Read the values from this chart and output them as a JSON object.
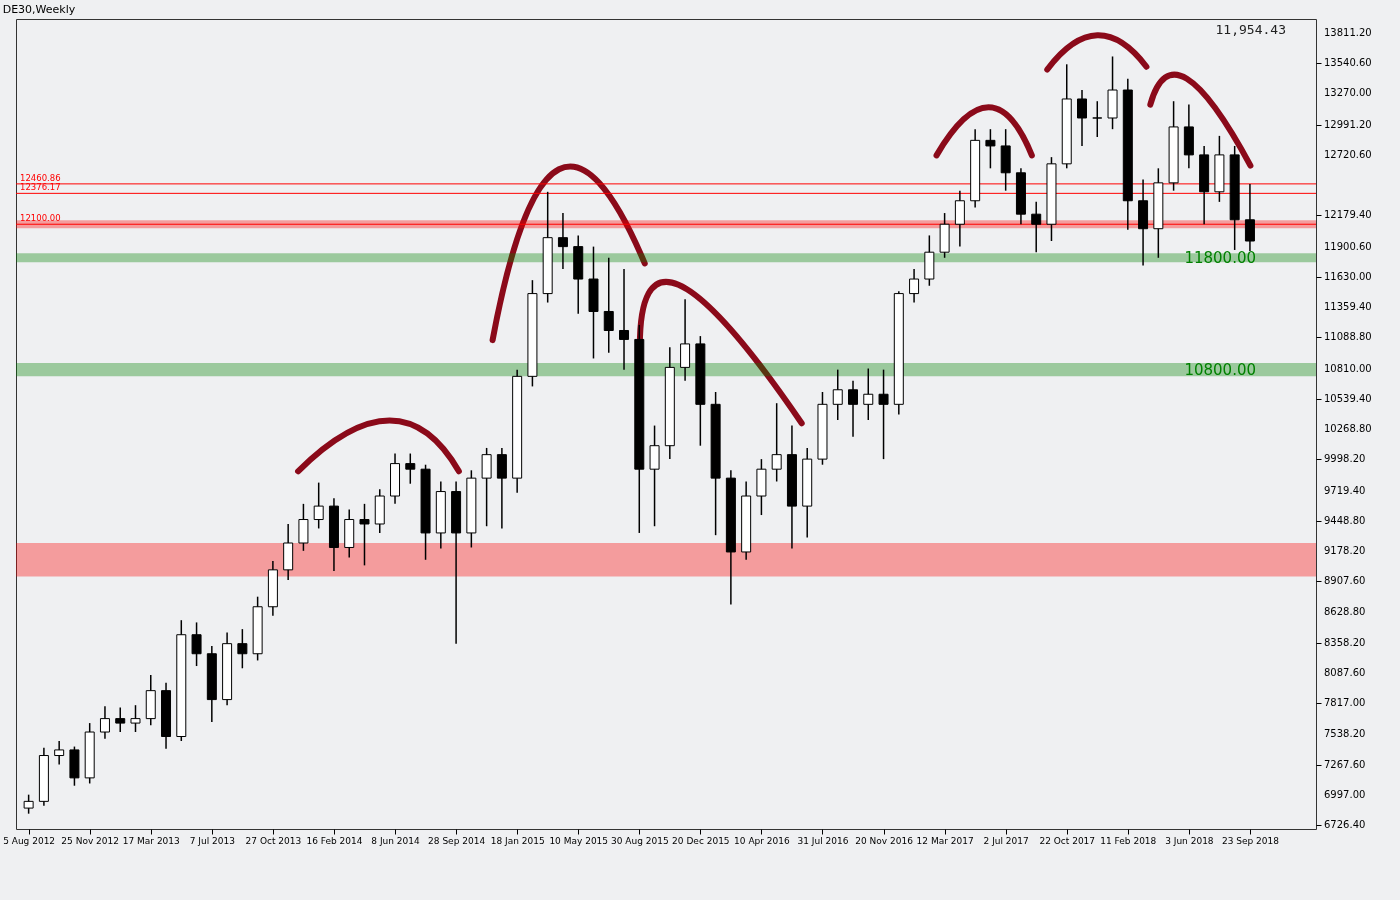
{
  "chart_data": {
    "type": "candlestick",
    "title": "DE30,Weekly",
    "annotations": [
      "11,954.43"
    ],
    "x": [
      "2012-08-05",
      "2012-09-02",
      "2012-09-30",
      "2012-10-28",
      "2012-11-25",
      "2012-12-23",
      "2013-01-20",
      "2013-02-17",
      "2013-03-17",
      "2013-04-14",
      "2013-05-12",
      "2013-06-09",
      "2013-07-07",
      "2013-08-04",
      "2013-09-01",
      "2013-09-29",
      "2013-10-27",
      "2013-11-24",
      "2013-12-22",
      "2014-01-19",
      "2014-02-16",
      "2014-03-16",
      "2014-04-13",
      "2014-05-11",
      "2014-06-08",
      "2014-07-06",
      "2014-08-03",
      "2014-08-31",
      "2014-09-28",
      "2014-10-26",
      "2014-11-23",
      "2014-12-21",
      "2015-01-18",
      "2015-02-15",
      "2015-03-15",
      "2015-04-12",
      "2015-05-10",
      "2015-06-07",
      "2015-07-05",
      "2015-08-02",
      "2015-08-30",
      "2015-09-27",
      "2015-10-25",
      "2015-11-22",
      "2015-12-20",
      "2016-01-17",
      "2016-02-14",
      "2016-03-13",
      "2016-04-10",
      "2016-05-08",
      "2016-06-05",
      "2016-07-03",
      "2016-07-31",
      "2016-08-28",
      "2016-09-25",
      "2016-10-23",
      "2016-11-20",
      "2016-12-18",
      "2017-01-15",
      "2017-02-12",
      "2017-03-12",
      "2017-04-09",
      "2017-05-07",
      "2017-06-04",
      "2017-07-02",
      "2017-07-30",
      "2017-08-27",
      "2017-09-24",
      "2017-10-22",
      "2017-11-19",
      "2017-12-17",
      "2018-01-14",
      "2018-02-11",
      "2018-03-11",
      "2018-04-08",
      "2018-05-06",
      "2018-06-03",
      "2018-07-01",
      "2018-07-29",
      "2018-08-26",
      "2018-09-23"
    ],
    "ohlc": [
      [
        6880,
        7000,
        6830,
        6940
      ],
      [
        6940,
        7420,
        6900,
        7350
      ],
      [
        7350,
        7480,
        7270,
        7400
      ],
      [
        7400,
        7430,
        7080,
        7150
      ],
      [
        7150,
        7640,
        7100,
        7560
      ],
      [
        7560,
        7790,
        7500,
        7680
      ],
      [
        7680,
        7780,
        7560,
        7640
      ],
      [
        7640,
        7800,
        7560,
        7680
      ],
      [
        7680,
        8070,
        7620,
        7930
      ],
      [
        7930,
        8000,
        7410,
        7520
      ],
      [
        7520,
        8560,
        7480,
        8430
      ],
      [
        8430,
        8540,
        8150,
        8260
      ],
      [
        8260,
        8330,
        7650,
        7850
      ],
      [
        7850,
        8450,
        7800,
        8350
      ],
      [
        8350,
        8480,
        8130,
        8260
      ],
      [
        8260,
        8770,
        8200,
        8680
      ],
      [
        8680,
        9090,
        8600,
        9010
      ],
      [
        9010,
        9420,
        8920,
        9250
      ],
      [
        9250,
        9600,
        9180,
        9460
      ],
      [
        9460,
        9790,
        9380,
        9580
      ],
      [
        9580,
        9650,
        9000,
        9210
      ],
      [
        9210,
        9550,
        9120,
        9460
      ],
      [
        9460,
        9600,
        9050,
        9420
      ],
      [
        9420,
        9730,
        9340,
        9670
      ],
      [
        9670,
        10050,
        9600,
        9960
      ],
      [
        9960,
        10050,
        9780,
        9910
      ],
      [
        9910,
        9950,
        9100,
        9340
      ],
      [
        9340,
        9800,
        9200,
        9710
      ],
      [
        9710,
        9800,
        8350,
        9340
      ],
      [
        9340,
        9900,
        9210,
        9830
      ],
      [
        9830,
        10100,
        9400,
        10040
      ],
      [
        10040,
        10100,
        9380,
        9830
      ],
      [
        9830,
        10800,
        9700,
        10740
      ],
      [
        10740,
        11600,
        10650,
        11480
      ],
      [
        11480,
        12390,
        11400,
        11980
      ],
      [
        11980,
        12200,
        11700,
        11900
      ],
      [
        11900,
        12000,
        11300,
        11610
      ],
      [
        11610,
        11900,
        10900,
        11320
      ],
      [
        11320,
        11800,
        10950,
        11150
      ],
      [
        11150,
        11700,
        10800,
        11070
      ],
      [
        11070,
        11200,
        9340,
        9910
      ],
      [
        9910,
        10300,
        9400,
        10120
      ],
      [
        10120,
        11000,
        10000,
        10820
      ],
      [
        10820,
        11430,
        10700,
        11030
      ],
      [
        11030,
        11100,
        10120,
        10490
      ],
      [
        10490,
        10600,
        9320,
        9830
      ],
      [
        9830,
        9900,
        8700,
        9170
      ],
      [
        9170,
        9800,
        9100,
        9670
      ],
      [
        9670,
        10000,
        9500,
        9910
      ],
      [
        9910,
        10500,
        9800,
        10040
      ],
      [
        10040,
        10300,
        9200,
        9580
      ],
      [
        9580,
        10100,
        9300,
        10000
      ],
      [
        10000,
        10600,
        9950,
        10490
      ],
      [
        10490,
        10800,
        10350,
        10620
      ],
      [
        10620,
        10700,
        10200,
        10490
      ],
      [
        10490,
        10810,
        10350,
        10580
      ],
      [
        10580,
        10800,
        10000,
        10490
      ],
      [
        10490,
        11500,
        10400,
        11480
      ],
      [
        11480,
        11700,
        11400,
        11610
      ],
      [
        11610,
        12000,
        11550,
        11850
      ],
      [
        11850,
        12200,
        11800,
        12100
      ],
      [
        12100,
        12400,
        11900,
        12310
      ],
      [
        12310,
        12950,
        12250,
        12850
      ],
      [
        12850,
        12950,
        12600,
        12800
      ],
      [
        12800,
        12950,
        12400,
        12560
      ],
      [
        12560,
        12600,
        12100,
        12190
      ],
      [
        12190,
        12300,
        11850,
        12100
      ],
      [
        12100,
        12700,
        11950,
        12640
      ],
      [
        12640,
        13530,
        12600,
        13220
      ],
      [
        13220,
        13300,
        12800,
        13050
      ],
      [
        13050,
        13200,
        12880,
        13050
      ],
      [
        13050,
        13600,
        12950,
        13300
      ],
      [
        13300,
        13400,
        12050,
        12310
      ],
      [
        12310,
        12500,
        11730,
        12060
      ],
      [
        12060,
        12600,
        11800,
        12470
      ],
      [
        12470,
        13200,
        12400,
        12970
      ],
      [
        12970,
        13170,
        12600,
        12720
      ],
      [
        12720,
        12800,
        12100,
        12390
      ],
      [
        12390,
        12890,
        12300,
        12720
      ],
      [
        12720,
        12800,
        11870,
        12140
      ],
      [
        12140,
        12460,
        11860,
        11950
      ]
    ],
    "xlim": [
      "2012-07-22",
      "2019-01-13"
    ],
    "xticks": [
      {
        "value": "2012-08-05",
        "label": "5 Aug 2012"
      },
      {
        "value": "2012-11-25",
        "label": "25 Nov 2012"
      },
      {
        "value": "2013-03-17",
        "label": "17 Mar 2013"
      },
      {
        "value": "2013-07-07",
        "label": "7 Jul 2013"
      },
      {
        "value": "2013-10-27",
        "label": "27 Oct 2013"
      },
      {
        "value": "2014-02-16",
        "label": "16 Feb 2014"
      },
      {
        "value": "2014-06-08",
        "label": "8 Jun 2014"
      },
      {
        "value": "2014-09-28",
        "label": "28 Sep 2014"
      },
      {
        "value": "2015-01-18",
        "label": "18 Jan 2015"
      },
      {
        "value": "2015-05-10",
        "label": "10 May 2015"
      },
      {
        "value": "2015-08-30",
        "label": "30 Aug 2015"
      },
      {
        "value": "2015-12-20",
        "label": "20 Dec 2015"
      },
      {
        "value": "2016-04-10",
        "label": "10 Apr 2016"
      },
      {
        "value": "2016-07-31",
        "label": "31 Jul 2016"
      },
      {
        "value": "2016-11-20",
        "label": "20 Nov 2016"
      },
      {
        "value": "2017-03-12",
        "label": "12 Mar 2017"
      },
      {
        "value": "2017-07-02",
        "label": "2 Jul 2017"
      },
      {
        "value": "2017-10-22",
        "label": "22 Oct 2017"
      },
      {
        "value": "2018-02-11",
        "label": "11 Feb 2018"
      },
      {
        "value": "2018-06-03",
        "label": "3 Jun 2018"
      },
      {
        "value": "2018-09-23",
        "label": "23 Sep 2018"
      }
    ],
    "ylim": [
      6693,
      13935
    ],
    "yticks": [
      {
        "value": 6726.4,
        "label": "6726.40"
      },
      {
        "value": 6997,
        "label": "6997.00"
      },
      {
        "value": 7267.6,
        "label": "7267.60"
      },
      {
        "value": 7538.2,
        "label": "7538.20"
      },
      {
        "value": 7817,
        "label": "7817.00"
      },
      {
        "value": 8087.6,
        "label": "8087.60"
      },
      {
        "value": 8358.2,
        "label": "8358.20"
      },
      {
        "value": 8628.8,
        "label": "8628.80"
      },
      {
        "value": 8907.6,
        "label": "8907.60"
      },
      {
        "value": 9178.2,
        "label": "9178.20"
      },
      {
        "value": 9448.8,
        "label": "9448.80"
      },
      {
        "value": 9719.4,
        "label": "9719.40"
      },
      {
        "value": 9998.2,
        "label": "9998.20"
      },
      {
        "value": 10268.8,
        "label": "10268.80"
      },
      {
        "value": 10539.4,
        "label": "10539.40"
      },
      {
        "value": 10810,
        "label": "10810.00"
      },
      {
        "value": 11088.8,
        "label": "11088.80"
      },
      {
        "value": 11359.4,
        "label": "11359.40"
      },
      {
        "value": 11630,
        "label": "11630.00"
      },
      {
        "value": 11900.6,
        "label": "11900.60"
      },
      {
        "value": 12179.4,
        "label": "12179.40"
      },
      {
        "value": 12720.6,
        "label": "12720.60"
      },
      {
        "value": 12991.2,
        "label": "12991.20"
      },
      {
        "value": 13270,
        "label": "13270.00"
      },
      {
        "value": 13540.6,
        "label": "13540.60"
      },
      {
        "value": 13811.2,
        "label": "13811.20"
      }
    ],
    "ref_lines": [
      {
        "axis": "y",
        "value": 12460.86,
        "label": "12460.86",
        "color": "#ff0000"
      },
      {
        "axis": "y",
        "value": 12376.17,
        "label": "12376.17",
        "color": "#ff0000"
      },
      {
        "axis": "y",
        "value": 12100,
        "label": "12100.00",
        "color": "#ff0000"
      }
    ],
    "bands": [
      {
        "axis": "y",
        "from": 11760,
        "to": 11840,
        "label": "11800.00",
        "color": "#008000"
      },
      {
        "axis": "y",
        "from": 10740,
        "to": 10860,
        "label": "10800.00",
        "color": "#008000"
      },
      {
        "axis": "y",
        "from": 12065,
        "to": 12135,
        "label": null,
        "color": "#ff0000"
      },
      {
        "axis": "y",
        "from": 8950,
        "to": 9250,
        "label": null,
        "color": "#ff0000"
      }
    ],
    "grid": false
  }
}
